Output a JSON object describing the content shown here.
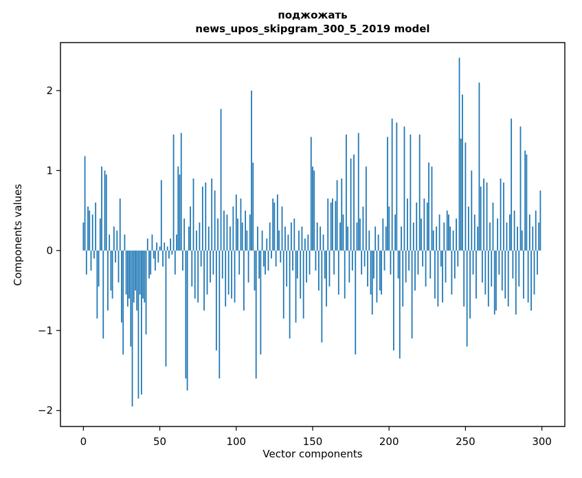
{
  "figure": {
    "title_line1": "поджожать",
    "title_line2": "news_upos_skipgram_300_5_2019 model",
    "xlabel": "Vector components",
    "ylabel": "Components values"
  },
  "chart_data": {
    "type": "bar",
    "title": "поджожать — news_upos_skipgram_300_5_2019 model",
    "xlabel": "Vector components",
    "ylabel": "Components values",
    "xlim": [
      -15,
      315
    ],
    "ylim": [
      -2.2,
      2.6
    ],
    "xticks": [
      0,
      50,
      100,
      150,
      200,
      250,
      300
    ],
    "yticks": [
      -2,
      -1,
      0,
      1,
      2
    ],
    "grid": false,
    "legend": "none",
    "bar_color": "#1f77b4",
    "x_start": 0,
    "values": [
      0.35,
      1.18,
      -0.3,
      0.55,
      0.5,
      -0.25,
      0.45,
      -0.1,
      0.6,
      -0.85,
      -0.45,
      0.4,
      1.05,
      -1.1,
      1.0,
      0.95,
      -0.75,
      0.2,
      -0.5,
      -0.6,
      0.3,
      -0.15,
      0.25,
      -0.4,
      0.65,
      -0.9,
      -1.3,
      0.2,
      -0.55,
      -0.7,
      -0.6,
      -1.2,
      -1.95,
      -0.65,
      -0.5,
      -0.75,
      -1.85,
      -0.55,
      -1.8,
      -0.6,
      -0.65,
      -1.05,
      0.15,
      -0.35,
      -0.3,
      0.2,
      -0.1,
      -0.25,
      0.1,
      -0.15,
      0.05,
      0.88,
      -0.2,
      0.1,
      -1.45,
      0.05,
      -0.1,
      0.15,
      -0.05,
      1.45,
      -0.3,
      0.2,
      1.05,
      0.95,
      1.47,
      -0.25,
      0.4,
      -1.6,
      -1.75,
      0.3,
      0.55,
      -0.45,
      0.9,
      -0.6,
      0.25,
      -0.65,
      0.35,
      -0.2,
      0.8,
      -0.75,
      0.85,
      -0.55,
      0.3,
      -0.4,
      0.9,
      -0.3,
      0.75,
      -1.25,
      0.4,
      -1.6,
      1.77,
      -0.35,
      0.5,
      -0.7,
      0.45,
      -0.55,
      0.3,
      -0.6,
      0.55,
      -0.65,
      0.7,
      0.4,
      -0.3,
      0.65,
      0.35,
      -0.75,
      0.5,
      0.25,
      -0.4,
      0.45,
      2.0,
      1.1,
      -0.5,
      -1.6,
      0.3,
      -0.35,
      -1.3,
      0.25,
      -0.2,
      -0.3,
      0.15,
      -0.25,
      0.35,
      -0.1,
      0.65,
      0.6,
      -0.2,
      0.7,
      0.25,
      -0.15,
      0.55,
      -0.85,
      0.3,
      -0.45,
      0.2,
      -1.1,
      0.35,
      -0.25,
      0.4,
      -0.9,
      -0.35,
      0.25,
      -0.6,
      0.3,
      -0.85,
      0.15,
      -0.4,
      0.2,
      -0.3,
      1.42,
      1.05,
      1.0,
      -0.25,
      0.35,
      -0.5,
      0.3,
      -1.15,
      0.2,
      -0.35,
      -0.7,
      0.65,
      -0.45,
      0.6,
      0.65,
      -0.3,
      0.62,
      0.88,
      -0.55,
      0.35,
      0.9,
      0.45,
      -0.6,
      1.45,
      0.3,
      -0.4,
      1.15,
      -0.25,
      1.2,
      -1.3,
      0.35,
      1.47,
      0.4,
      -0.3,
      0.55,
      -0.2,
      1.05,
      -0.45,
      0.25,
      -0.55,
      -0.8,
      -0.35,
      0.3,
      -0.65,
      0.2,
      -0.5,
      -0.55,
      0.4,
      -0.25,
      0.3,
      1.42,
      0.55,
      -0.3,
      1.65,
      -1.25,
      0.45,
      1.6,
      -0.35,
      -1.35,
      0.3,
      -0.7,
      1.55,
      -0.4,
      0.65,
      -0.25,
      1.45,
      -1.1,
      0.35,
      -0.5,
      0.6,
      -0.3,
      1.45,
      0.4,
      -0.2,
      0.65,
      -0.45,
      0.6,
      1.1,
      -0.35,
      1.05,
      0.25,
      -0.6,
      0.3,
      -0.7,
      0.45,
      -0.2,
      -0.65,
      0.35,
      -0.4,
      0.5,
      0.45,
      0.3,
      -0.55,
      0.25,
      -0.35,
      0.4,
      -0.2,
      2.41,
      1.4,
      1.95,
      -0.7,
      1.35,
      -1.2,
      0.55,
      -0.85,
      1.0,
      -0.3,
      0.45,
      -0.6,
      0.3,
      2.1,
      0.8,
      -0.4,
      0.9,
      -0.55,
      0.85,
      -0.7,
      0.35,
      -0.45,
      0.6,
      -0.8,
      -0.75,
      0.4,
      -0.3,
      0.9,
      -0.5,
      0.85,
      -0.6,
      0.35,
      -0.7,
      0.45,
      1.65,
      -0.35,
      0.5,
      -0.8,
      0.3,
      -0.45,
      1.55,
      0.25,
      -0.6,
      1.25,
      1.2,
      -0.65,
      0.45,
      -0.75,
      0.3,
      -0.55,
      0.5,
      -0.3,
      0.35,
      0.75
    ]
  }
}
